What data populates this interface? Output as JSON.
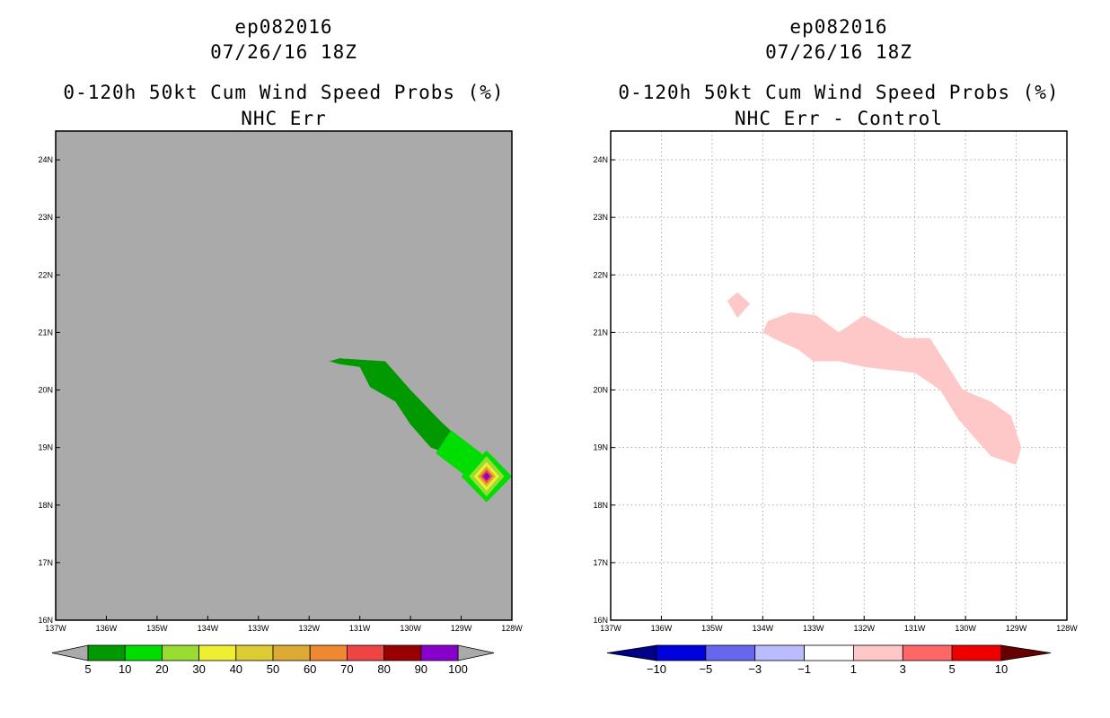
{
  "chart_data": [
    {
      "type": "heatmap",
      "title_lines": [
        "ep082016",
        "07/26/16 18Z",
        "0-120h 50kt Cum Wind Speed Probs (%)",
        "NHC Err"
      ],
      "x_ticks": [
        "137W",
        "136W",
        "135W",
        "134W",
        "133W",
        "132W",
        "131W",
        "130W",
        "129W",
        "128W"
      ],
      "y_ticks": [
        "16N",
        "17N",
        "18N",
        "19N",
        "20N",
        "21N",
        "22N",
        "23N",
        "24N"
      ],
      "xlim": [
        -137,
        -128
      ],
      "ylim": [
        16,
        24.5
      ],
      "grid": false,
      "background": "#aaaaaa",
      "colorbar": {
        "labels": [
          "5",
          "10",
          "20",
          "30",
          "40",
          "50",
          "60",
          "70",
          "80",
          "90",
          "100"
        ],
        "colors": [
          "#009900",
          "#00dd00",
          "#99dd33",
          "#eeee33",
          "#ddcc33",
          "#ddaa33",
          "#ee8833",
          "#ee4444",
          "#990000",
          "#8800cc"
        ],
        "end_colors": [
          "#aaaaaa",
          "#aaaaaa"
        ]
      },
      "contours": [
        {
          "level": "5-10",
          "color": "#009900",
          "points": [
            [
              -131.6,
              20.5
            ],
            [
              -131.4,
              20.55
            ],
            [
              -130.5,
              20.5
            ],
            [
              -130,
              20
            ],
            [
              -129.4,
              19.45
            ],
            [
              -128.6,
              18.8
            ],
            [
              -129.3,
              18.9
            ],
            [
              -129.6,
              19
            ],
            [
              -130,
              19.4
            ],
            [
              -130.3,
              19.8
            ],
            [
              -130.8,
              20.05
            ],
            [
              -131,
              20.4
            ],
            [
              -131.4,
              20.45
            ]
          ]
        },
        {
          "level": "10-20",
          "color": "#00dd00",
          "points": [
            [
              -129.2,
              19.3
            ],
            [
              -128.6,
              18.9
            ],
            [
              -128.5,
              18.7
            ],
            [
              -128.9,
              18.5
            ],
            [
              -129.5,
              18.9
            ]
          ]
        },
        {
          "level": "10-20",
          "color": "#00dd00",
          "points": [
            [
              -128.5,
              18.95
            ],
            [
              -128,
              18.5
            ],
            [
              -128.5,
              18.05
            ],
            [
              -129,
              18.5
            ]
          ]
        },
        {
          "level": "20-30",
          "color": "#99dd33",
          "points": [
            [
              -128.5,
              18.85
            ],
            [
              -128.15,
              18.5
            ],
            [
              -128.5,
              18.15
            ],
            [
              -128.85,
              18.5
            ]
          ]
        },
        {
          "level": "30-40",
          "color": "#eeee33",
          "points": [
            [
              -128.5,
              18.75
            ],
            [
              -128.25,
              18.5
            ],
            [
              -128.5,
              18.25
            ],
            [
              -128.75,
              18.5
            ]
          ]
        },
        {
          "level": "50-60",
          "color": "#ddaa33",
          "points": [
            [
              -128.5,
              18.68
            ],
            [
              -128.32,
              18.5
            ],
            [
              -128.5,
              18.32
            ],
            [
              -128.68,
              18.5
            ]
          ]
        },
        {
          "level": "70-80",
          "color": "#ee4444",
          "points": [
            [
              -128.5,
              18.62
            ],
            [
              -128.38,
              18.5
            ],
            [
              -128.5,
              18.38
            ],
            [
              -128.62,
              18.5
            ]
          ]
        },
        {
          "level": "90-100",
          "color": "#8800cc",
          "points": [
            [
              -128.5,
              18.57
            ],
            [
              -128.43,
              18.5
            ],
            [
              -128.5,
              18.43
            ],
            [
              -128.57,
              18.5
            ]
          ]
        }
      ]
    },
    {
      "type": "heatmap",
      "title_lines": [
        "ep082016",
        "07/26/16 18Z",
        "0-120h 50kt Cum Wind Speed Probs (%)",
        "NHC Err - Control"
      ],
      "x_ticks": [
        "137W",
        "136W",
        "135W",
        "134W",
        "133W",
        "132W",
        "131W",
        "130W",
        "129W",
        "128W"
      ],
      "y_ticks": [
        "16N",
        "17N",
        "18N",
        "19N",
        "20N",
        "21N",
        "22N",
        "23N",
        "24N"
      ],
      "xlim": [
        -137,
        -128
      ],
      "ylim": [
        16,
        24.5
      ],
      "grid": true,
      "background": "#ffffff",
      "colorbar": {
        "labels": [
          "-10",
          "-5",
          "-3",
          "-1",
          "1",
          "3",
          "5",
          "10"
        ],
        "colors": [
          "#0000dd",
          "#6666ee",
          "#bbbbff",
          "#ffffff",
          "#ffc8c8",
          "#ff6666",
          "#ee0000"
        ],
        "end_colors": [
          "#000088",
          "#660000"
        ]
      },
      "contours": [
        {
          "level": "1-3",
          "color": "#ffc8c8",
          "points": [
            [
              -134.7,
              21.55
            ],
            [
              -134.5,
              21.7
            ],
            [
              -134.25,
              21.5
            ],
            [
              -134.5,
              21.25
            ]
          ]
        },
        {
          "level": "1-3",
          "color": "#ffc8c8",
          "points": [
            [
              -133.9,
              21.2
            ],
            [
              -133.45,
              21.35
            ],
            [
              -132.95,
              21.3
            ],
            [
              -132.5,
              21
            ],
            [
              -132,
              21.3
            ],
            [
              -131.2,
              20.9
            ],
            [
              -130.7,
              20.9
            ],
            [
              -130.05,
              20
            ],
            [
              -129.5,
              19.8
            ],
            [
              -129.1,
              19.55
            ],
            [
              -128.9,
              19
            ],
            [
              -129,
              18.7
            ],
            [
              -129.5,
              18.85
            ],
            [
              -130.15,
              19.5
            ],
            [
              -130.5,
              20
            ],
            [
              -131,
              20.3
            ],
            [
              -132,
              20.4
            ],
            [
              -132.5,
              20.5
            ],
            [
              -133,
              20.5
            ],
            [
              -133.3,
              20.7
            ],
            [
              -133.8,
              20.9
            ],
            [
              -134,
              21.0
            ]
          ]
        }
      ]
    }
  ]
}
